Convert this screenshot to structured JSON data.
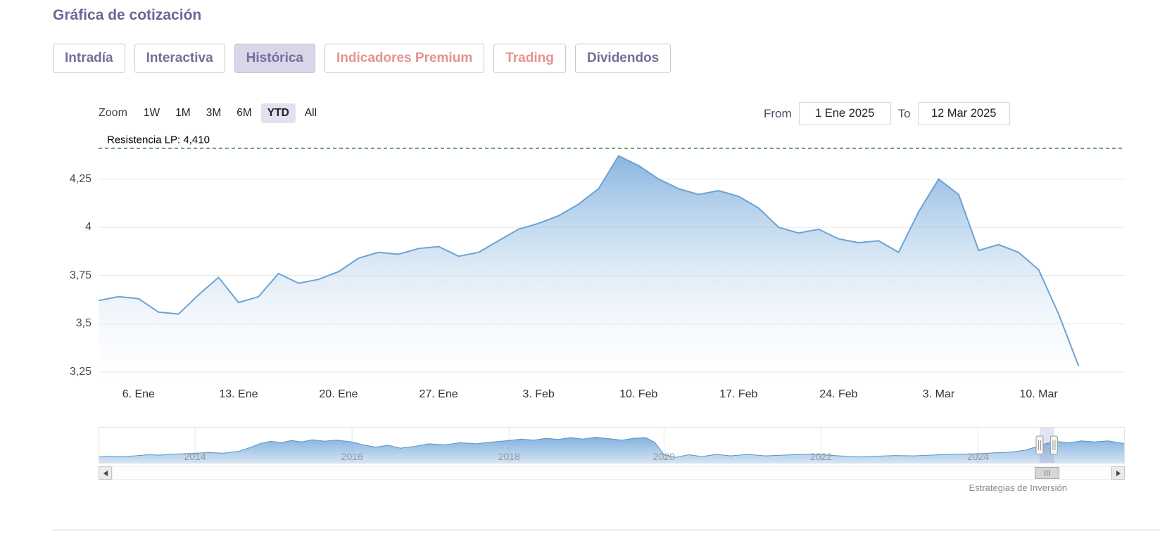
{
  "title": "Gráfica de cotización",
  "tabs": {
    "items": [
      {
        "label": "Intradía",
        "selected": false
      },
      {
        "label": "Interactiva",
        "selected": false
      },
      {
        "label": "Histórica",
        "selected": true
      },
      {
        "label": "Indicadores Premium",
        "selected": false,
        "accent": "salmon"
      },
      {
        "label": "Trading",
        "selected": false,
        "accent": "salmon"
      },
      {
        "label": "Dividendos",
        "selected": false
      }
    ]
  },
  "range_selector": {
    "zoom_label": "Zoom",
    "buttons": [
      {
        "label": "1W",
        "selected": false
      },
      {
        "label": "1M",
        "selected": false
      },
      {
        "label": "3M",
        "selected": false
      },
      {
        "label": "6M",
        "selected": false
      },
      {
        "label": "YTD",
        "selected": true
      },
      {
        "label": "All",
        "selected": false
      }
    ],
    "from_label": "From",
    "from_value": "1 Ene 2025",
    "to_label": "To",
    "to_value": "12 Mar 2025"
  },
  "credit": "Estrategias de Inversión",
  "colors": {
    "accent_purple": "#6f6496",
    "tab_selected_bg": "#d8d6e8",
    "premium_red": "#e69191",
    "series_line": "#6ba3d6",
    "area_top": "#74a9db",
    "resistance_green": "#156b15",
    "grid": "#e6e6e6",
    "zoom_selected_bg": "#e3e1f0",
    "nav_selection": "#7882c8"
  },
  "scrollbar": {
    "thumb_from": 0.912,
    "thumb_to": 0.936
  },
  "chart_data": [
    {
      "type": "area",
      "title": "",
      "xlabel": "",
      "ylabel": "",
      "legend": "none",
      "grid": "horizontal",
      "ylim": [
        3.18,
        4.5
      ],
      "x": [
        "2 Ene",
        "3 Ene",
        "6 Ene",
        "7 Ene",
        "8 Ene",
        "9 Ene",
        "10 Ene",
        "13 Ene",
        "14 Ene",
        "15 Ene",
        "16 Ene",
        "17 Ene",
        "20 Ene",
        "21 Ene",
        "22 Ene",
        "23 Ene",
        "24 Ene",
        "27 Ene",
        "28 Ene",
        "29 Ene",
        "30 Ene",
        "31 Ene",
        "3 Feb",
        "4 Feb",
        "5 Feb",
        "6 Feb",
        "7 Feb",
        "10 Feb",
        "11 Feb",
        "12 Feb",
        "13 Feb",
        "14 Feb",
        "17 Feb",
        "18 Feb",
        "19 Feb",
        "20 Feb",
        "21 Feb",
        "24 Feb",
        "25 Feb",
        "26 Feb",
        "27 Feb",
        "28 Feb",
        "3 Mar",
        "4 Mar",
        "5 Mar",
        "6 Mar",
        "7 Mar",
        "10 Mar",
        "11 Mar",
        "12 Mar"
      ],
      "values": [
        3.62,
        3.64,
        3.63,
        3.56,
        3.55,
        3.65,
        3.74,
        3.61,
        3.64,
        3.76,
        3.71,
        3.73,
        3.77,
        3.84,
        3.87,
        3.86,
        3.89,
        3.9,
        3.85,
        3.87,
        3.93,
        3.99,
        4.02,
        4.06,
        4.12,
        4.2,
        4.37,
        4.32,
        4.25,
        4.2,
        4.17,
        4.19,
        4.16,
        4.1,
        4.0,
        3.97,
        3.99,
        3.94,
        3.92,
        3.93,
        3.87,
        4.08,
        4.25,
        4.17,
        3.88,
        3.91,
        3.87,
        3.78,
        3.55,
        3.28
      ],
      "x_ticks": [
        {
          "index": 2,
          "label": "6. Ene"
        },
        {
          "index": 7,
          "label": "13. Ene"
        },
        {
          "index": 12,
          "label": "20. Ene"
        },
        {
          "index": 17,
          "label": "27. Ene"
        },
        {
          "index": 22,
          "label": "3. Feb"
        },
        {
          "index": 27,
          "label": "10. Feb"
        },
        {
          "index": 32,
          "label": "17. Feb"
        },
        {
          "index": 37,
          "label": "24. Feb"
        },
        {
          "index": 42,
          "label": "3. Mar"
        },
        {
          "index": 47,
          "label": "10. Mar"
        }
      ],
      "yticks": [
        {
          "value": 3.25,
          "label": "3,25"
        },
        {
          "value": 3.5,
          "label": "3,5"
        },
        {
          "value": 3.75,
          "label": "3,75"
        },
        {
          "value": 4,
          "label": "4"
        },
        {
          "value": 4.25,
          "label": "4,25"
        }
      ],
      "plotline": {
        "value": 4.41,
        "label": "Resistencia LP: 4,410"
      }
    },
    {
      "type": "area",
      "role": "navigator",
      "units": "relative_0_1",
      "points": [
        [
          0.0,
          0.18
        ],
        [
          0.01,
          0.2
        ],
        [
          0.022,
          0.19
        ],
        [
          0.035,
          0.21
        ],
        [
          0.048,
          0.24
        ],
        [
          0.06,
          0.23
        ],
        [
          0.075,
          0.26
        ],
        [
          0.094,
          0.28
        ],
        [
          0.108,
          0.3
        ],
        [
          0.122,
          0.28
        ],
        [
          0.136,
          0.33
        ],
        [
          0.148,
          0.44
        ],
        [
          0.158,
          0.55
        ],
        [
          0.168,
          0.61
        ],
        [
          0.178,
          0.57
        ],
        [
          0.188,
          0.63
        ],
        [
          0.198,
          0.59
        ],
        [
          0.208,
          0.65
        ],
        [
          0.22,
          0.61
        ],
        [
          0.232,
          0.64
        ],
        [
          0.247,
          0.59
        ],
        [
          0.258,
          0.51
        ],
        [
          0.27,
          0.45
        ],
        [
          0.282,
          0.5
        ],
        [
          0.294,
          0.42
        ],
        [
          0.308,
          0.47
        ],
        [
          0.322,
          0.54
        ],
        [
          0.338,
          0.51
        ],
        [
          0.352,
          0.57
        ],
        [
          0.368,
          0.54
        ],
        [
          0.385,
          0.59
        ],
        [
          0.4,
          0.63
        ],
        [
          0.412,
          0.67
        ],
        [
          0.424,
          0.64
        ],
        [
          0.436,
          0.69
        ],
        [
          0.448,
          0.66
        ],
        [
          0.46,
          0.71
        ],
        [
          0.472,
          0.67
        ],
        [
          0.484,
          0.72
        ],
        [
          0.497,
          0.68
        ],
        [
          0.51,
          0.64
        ],
        [
          0.522,
          0.69
        ],
        [
          0.533,
          0.71
        ],
        [
          0.542,
          0.58
        ],
        [
          0.551,
          0.24
        ],
        [
          0.562,
          0.17
        ],
        [
          0.575,
          0.24
        ],
        [
          0.588,
          0.19
        ],
        [
          0.602,
          0.25
        ],
        [
          0.616,
          0.21
        ],
        [
          0.632,
          0.25
        ],
        [
          0.65,
          0.21
        ],
        [
          0.668,
          0.23
        ],
        [
          0.686,
          0.25
        ],
        [
          0.704,
          0.24
        ],
        [
          0.722,
          0.21
        ],
        [
          0.74,
          0.18
        ],
        [
          0.758,
          0.2
        ],
        [
          0.776,
          0.22
        ],
        [
          0.794,
          0.21
        ],
        [
          0.812,
          0.23
        ],
        [
          0.83,
          0.25
        ],
        [
          0.848,
          0.26
        ],
        [
          0.857,
          0.27
        ],
        [
          0.872,
          0.29
        ],
        [
          0.888,
          0.31
        ],
        [
          0.902,
          0.36
        ],
        [
          0.914,
          0.46
        ],
        [
          0.924,
          0.55
        ],
        [
          0.934,
          0.6
        ],
        [
          0.946,
          0.57
        ],
        [
          0.958,
          0.62
        ],
        [
          0.97,
          0.59
        ],
        [
          0.984,
          0.62
        ],
        [
          1.0,
          0.54
        ]
      ],
      "year_labels": [
        {
          "x": 0.094,
          "label": "2014"
        },
        {
          "x": 0.247,
          "label": "2016"
        },
        {
          "x": 0.4,
          "label": "2018"
        },
        {
          "x": 0.551,
          "label": "2020"
        },
        {
          "x": 0.704,
          "label": "2022"
        },
        {
          "x": 0.857,
          "label": "2024"
        }
      ],
      "selection": {
        "from": 0.917,
        "to": 0.931
      }
    }
  ]
}
